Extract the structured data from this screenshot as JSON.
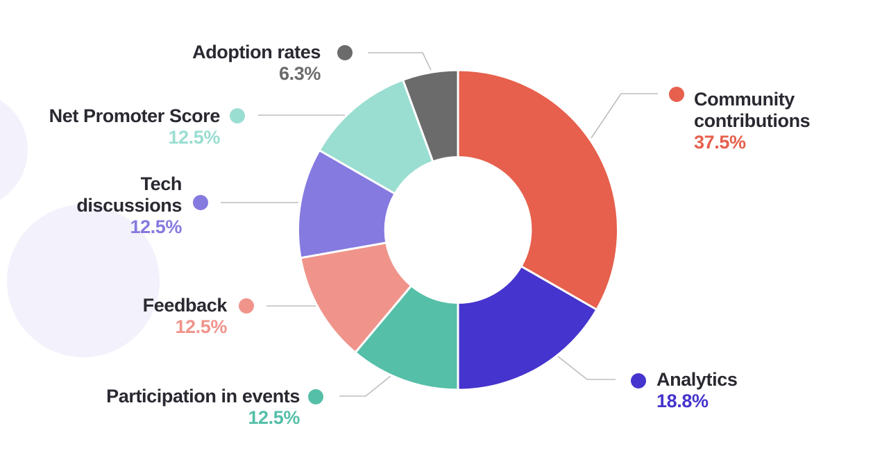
{
  "chart_data": {
    "type": "pie",
    "subtype": "donut",
    "title": "",
    "direction": "clockwise",
    "start_angle_deg": 0,
    "hole_ratio": 0.455,
    "values_normalized_to_angles": true,
    "slices": [
      {
        "label": "Community contributions",
        "value": 37.5,
        "display": "37.5%",
        "color": "#E6604D"
      },
      {
        "label": "Analytics",
        "value": 18.8,
        "display": "18.8%",
        "color": "#4534CD"
      },
      {
        "label": "Participation in events",
        "value": 12.5,
        "display": "12.5%",
        "color": "#55BFA8"
      },
      {
        "label": "Feedback",
        "value": 12.5,
        "display": "12.5%",
        "color": "#F0948B"
      },
      {
        "label": "Tech discussions",
        "value": 12.5,
        "display": "12.5%",
        "color": "#857AE0"
      },
      {
        "label": "Net Promoter Score",
        "value": 12.5,
        "display": "12.5%",
        "color": "#9ADED1"
      },
      {
        "label": "Adoption rates",
        "value": 6.3,
        "display": "6.3%",
        "color": "#6B6B6B"
      }
    ]
  },
  "theme": {
    "background": "#FFFFFF",
    "label_text_color": "#2A2830",
    "connector_color": "#BDBDBD",
    "decor_circle_color": "#F3F1FB",
    "slice_gap_color": "#FFFFFF"
  }
}
